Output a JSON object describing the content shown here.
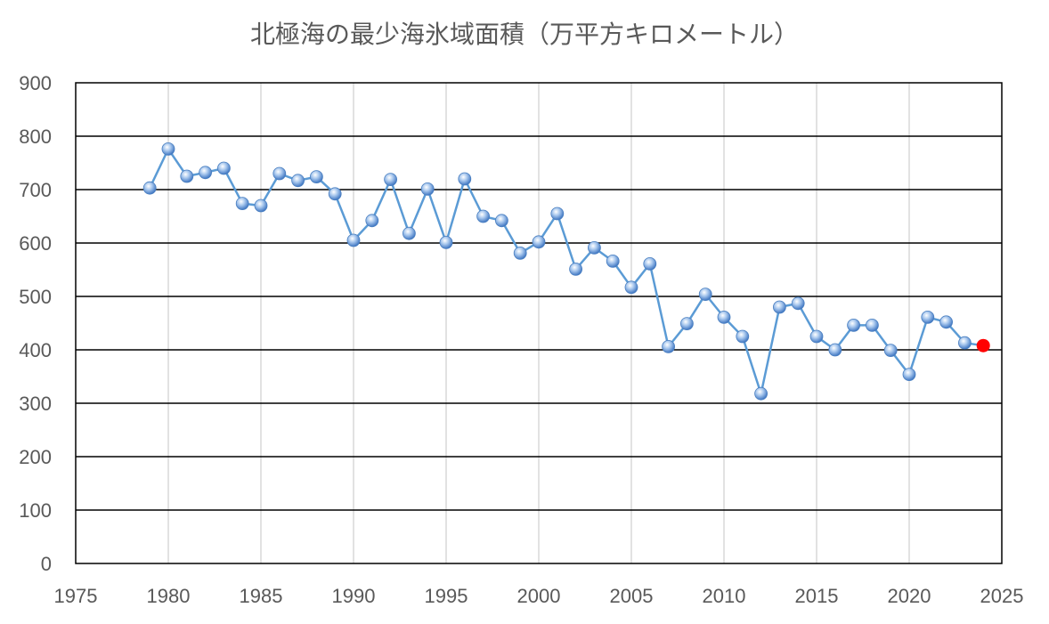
{
  "chart_data": {
    "type": "line",
    "title": "北極海の最少海氷域面積（万平方キロメートル）",
    "xlim": [
      1975,
      2025
    ],
    "ylim": [
      0,
      900
    ],
    "x_ticks": [
      1975,
      1980,
      1985,
      1990,
      1995,
      2000,
      2005,
      2010,
      2015,
      2020,
      2025
    ],
    "y_ticks": [
      0,
      100,
      200,
      300,
      400,
      500,
      600,
      700,
      800,
      900
    ],
    "grid": {
      "horizontal": true,
      "vertical": true
    },
    "legend": "none",
    "colors": {
      "line": "#5b9bd5",
      "marker": "#8fb8e6",
      "highlight": "#ff0000",
      "h_grid": "#000000",
      "v_grid": "#d9d9d9",
      "text": "#595959"
    },
    "series": [
      {
        "x": [
          1979,
          1980,
          1981,
          1982,
          1983,
          1984,
          1985,
          1986,
          1987,
          1988,
          1989,
          1990,
          1991,
          1992,
          1993,
          1994,
          1995,
          1996,
          1997,
          1998,
          1999,
          2000,
          2001,
          2002,
          2003,
          2004,
          2005,
          2006,
          2007,
          2008,
          2009,
          2010,
          2011,
          2012,
          2013,
          2014,
          2015,
          2016,
          2017,
          2018,
          2019,
          2020,
          2021,
          2022,
          2023
        ],
        "values": [
          703,
          776,
          725,
          732,
          740,
          674,
          670,
          730,
          717,
          724,
          692,
          605,
          642,
          719,
          618,
          701,
          601,
          720,
          650,
          642,
          581,
          602,
          655,
          551,
          591,
          566,
          517,
          561,
          406,
          449,
          504,
          461,
          425,
          318,
          480,
          487,
          425,
          400,
          446,
          446,
          399,
          354,
          461,
          452,
          413
        ]
      },
      {
        "x": [
          2023,
          2024
        ],
        "values": [
          413,
          408
        ],
        "highlight_last": true
      }
    ]
  }
}
